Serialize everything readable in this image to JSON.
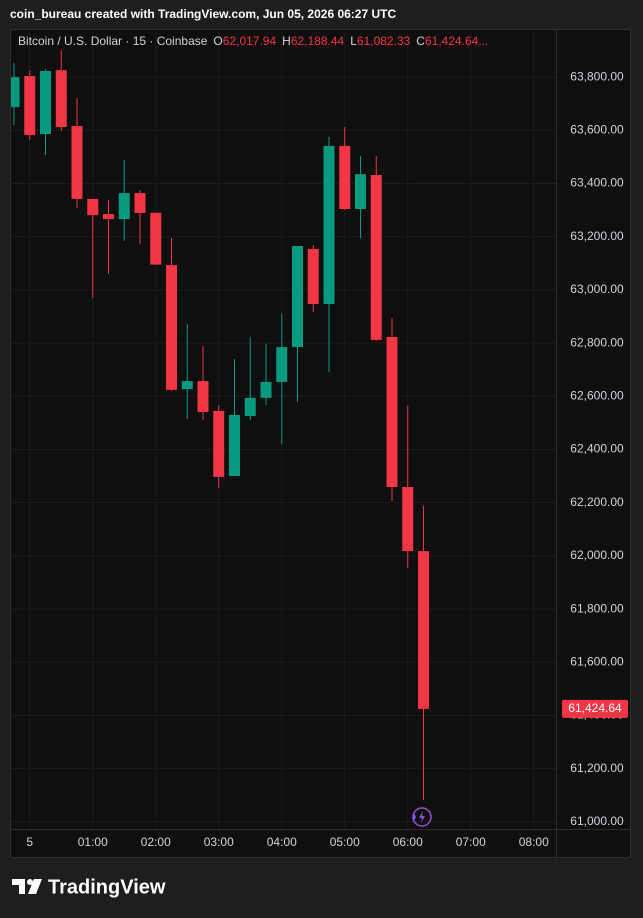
{
  "header": {
    "attribution": "coin_bureau created with TradingView.com, Jun 05, 2026 06:27 UTC"
  },
  "chart_data": {
    "type": "candlestick",
    "symbol": "Bitcoin / U.S. Dollar · 15 · Coinbase",
    "ohlc_legend": [
      {
        "key": "O",
        "label": "62,017.94"
      },
      {
        "key": "H",
        "label": "62,188.44"
      },
      {
        "key": "L",
        "label": "61,082.33"
      },
      {
        "key": "C",
        "label": "61,424.64"
      }
    ],
    "legend_ellipsis": "...",
    "up_color": "#089981",
    "down_color": "#f23645",
    "categories": [
      null,
      "5",
      null,
      null,
      null,
      "01:00",
      null,
      null,
      null,
      "02:00",
      null,
      null,
      null,
      "03:00",
      null,
      null,
      null,
      "04:00",
      null,
      null,
      null,
      "05:00",
      null,
      null,
      null,
      "06:00",
      null,
      null,
      null,
      "07:00",
      null,
      null,
      null,
      "08:00",
      null
    ],
    "open": [
      63687,
      63804,
      63586,
      63826,
      63616,
      63342,
      63285,
      63266,
      63364,
      63290,
      63093,
      62627,
      62657,
      62545,
      62300,
      62526,
      62594,
      62654,
      62785,
      63154,
      62947,
      63541,
      63304,
      63432,
      62823,
      62259,
      62017.94,
      null,
      null,
      null,
      null,
      null,
      null,
      null,
      null
    ],
    "high": [
      63853,
      63826,
      63830,
      63901,
      63721,
      63342,
      63338,
      63488,
      63375,
      63290,
      63195,
      62872,
      62789,
      62567,
      62740,
      62823,
      62797,
      62909,
      63165,
      63169,
      63575,
      63612,
      63503,
      63503,
      62894,
      62564,
      62188.44,
      null,
      null,
      null,
      null,
      null,
      null,
      null,
      null
    ],
    "low": [
      63620,
      63563,
      63507,
      63597,
      63308,
      62969,
      63060,
      63184,
      63172,
      63095,
      62620,
      62515,
      62511,
      62255,
      62300,
      62511,
      62567,
      62421,
      62579,
      62917,
      62691,
      63300,
      63195,
      62808,
      62207,
      61955,
      61082.33,
      null,
      null,
      null,
      null,
      null,
      null,
      null,
      null
    ],
    "close": [
      63800,
      63582,
      63823,
      63612,
      63342,
      63281,
      63266,
      63364,
      63289,
      63095,
      62624,
      62657,
      62541,
      62297,
      62530,
      62594,
      62654,
      62785,
      63165,
      62947,
      63541,
      63304,
      63435,
      62812,
      62259,
      62018,
      61424.64,
      null,
      null,
      null,
      null,
      null,
      null,
      null,
      null
    ],
    "value_labels": [
      null,
      null,
      null,
      null,
      null,
      null,
      null,
      null,
      null,
      null,
      null,
      null,
      null,
      null,
      null,
      null,
      null,
      null,
      null,
      null,
      null,
      null,
      null,
      null,
      null,
      null,
      "61,424.64",
      null,
      null,
      null,
      null,
      null,
      null,
      null,
      null
    ],
    "ylim": [
      60868,
      63977
    ],
    "yticks": [
      {
        "value": 61000,
        "label": "61,000.00"
      },
      {
        "value": 61200,
        "label": "61,200.00"
      },
      {
        "value": 61400,
        "label": "61,400.00"
      },
      {
        "value": 61600,
        "label": "61,600.00"
      },
      {
        "value": 61800,
        "label": "61,800.00"
      },
      {
        "value": 62000,
        "label": "62,000.00"
      },
      {
        "value": 62200,
        "label": "62,200.00"
      },
      {
        "value": 62400,
        "label": "62,400.00"
      },
      {
        "value": 62600,
        "label": "62,600.00"
      },
      {
        "value": 62800,
        "label": "62,800.00"
      },
      {
        "value": 63000,
        "label": "63,000.00"
      },
      {
        "value": 63200,
        "label": "63,200.00"
      },
      {
        "value": 63400,
        "label": "63,400.00"
      },
      {
        "value": 63600,
        "label": "63,600.00"
      },
      {
        "value": 63800,
        "label": "63,800.00"
      }
    ],
    "grid": true
  },
  "footer": {
    "brand": "TradingView"
  }
}
